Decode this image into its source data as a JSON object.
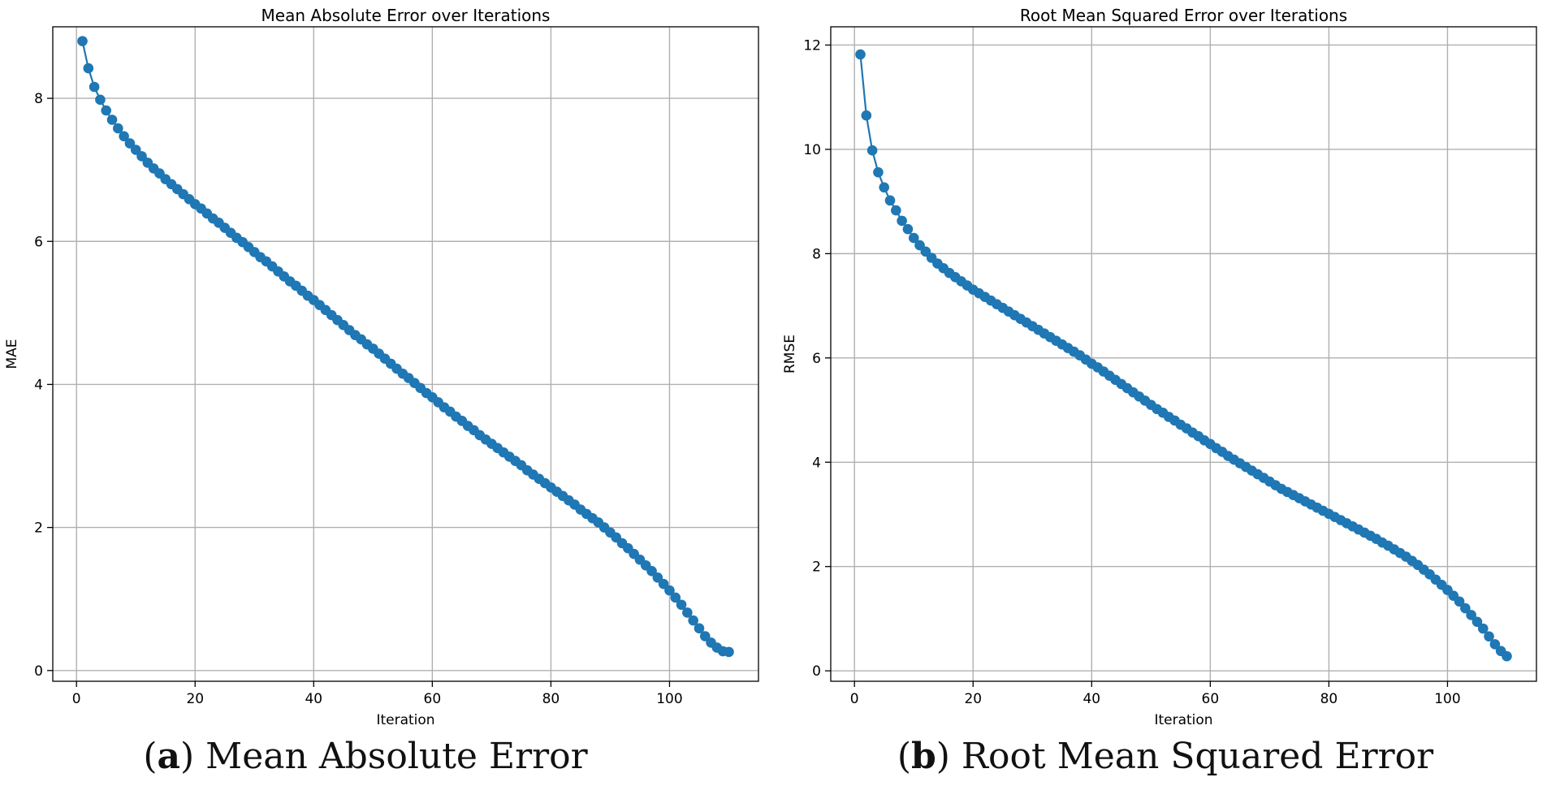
{
  "chart_data": [
    {
      "type": "line",
      "title": "Mean Absolute Error over Iterations",
      "xlabel": "Iteration",
      "ylabel": "MAE",
      "xlim": [
        -4,
        115
      ],
      "ylim": [
        -0.15,
        9.0
      ],
      "xticks": [
        0,
        20,
        40,
        60,
        80,
        100
      ],
      "yticks": [
        0,
        2,
        4,
        6,
        8
      ],
      "grid": true,
      "color": "#1f77b4",
      "marker": "circle",
      "x": [
        1,
        2,
        3,
        4,
        5,
        6,
        7,
        8,
        9,
        10,
        11,
        12,
        13,
        14,
        15,
        16,
        17,
        18,
        19,
        20,
        21,
        22,
        23,
        24,
        25,
        26,
        27,
        28,
        29,
        30,
        31,
        32,
        33,
        34,
        35,
        36,
        37,
        38,
        39,
        40,
        41,
        42,
        43,
        44,
        45,
        46,
        47,
        48,
        49,
        50,
        51,
        52,
        53,
        54,
        55,
        56,
        57,
        58,
        59,
        60,
        61,
        62,
        63,
        64,
        65,
        66,
        67,
        68,
        69,
        70,
        71,
        72,
        73,
        74,
        75,
        76,
        77,
        78,
        79,
        80,
        81,
        82,
        83,
        84,
        85,
        86,
        87,
        88,
        89,
        90,
        91,
        92,
        93,
        94,
        95,
        96,
        97,
        98,
        99,
        100,
        101,
        102,
        103,
        104,
        105,
        106,
        107,
        108,
        109,
        110
      ],
      "y": [
        8.8,
        8.42,
        8.16,
        7.98,
        7.83,
        7.7,
        7.58,
        7.47,
        7.37,
        7.28,
        7.19,
        7.1,
        7.02,
        6.95,
        6.87,
        6.8,
        6.73,
        6.66,
        6.59,
        6.52,
        6.46,
        6.39,
        6.32,
        6.26,
        6.19,
        6.12,
        6.05,
        5.99,
        5.92,
        5.85,
        5.78,
        5.72,
        5.65,
        5.58,
        5.51,
        5.44,
        5.38,
        5.31,
        5.24,
        5.18,
        5.11,
        5.04,
        4.97,
        4.9,
        4.83,
        4.76,
        4.69,
        4.63,
        4.56,
        4.5,
        4.43,
        4.36,
        4.29,
        4.22,
        4.15,
        4.09,
        4.02,
        3.95,
        3.88,
        3.82,
        3.75,
        3.68,
        3.62,
        3.55,
        3.49,
        3.42,
        3.36,
        3.29,
        3.23,
        3.17,
        3.11,
        3.05,
        2.99,
        2.93,
        2.87,
        2.8,
        2.74,
        2.68,
        2.62,
        2.56,
        2.5,
        2.44,
        2.38,
        2.32,
        2.25,
        2.19,
        2.13,
        2.07,
        2.0,
        1.93,
        1.86,
        1.78,
        1.71,
        1.63,
        1.55,
        1.47,
        1.39,
        1.3,
        1.21,
        1.12,
        1.02,
        0.92,
        0.81,
        0.7,
        0.59,
        0.48,
        0.39,
        0.32,
        0.27,
        0.26
      ]
    },
    {
      "type": "line",
      "title": "Root Mean Squared Error over Iterations",
      "xlabel": "Iteration",
      "ylabel": "RMSE",
      "xlim": [
        -4,
        115
      ],
      "ylim": [
        -0.2,
        12.35
      ],
      "xticks": [
        0,
        20,
        40,
        60,
        80,
        100
      ],
      "yticks": [
        0,
        2,
        4,
        6,
        8,
        10,
        12
      ],
      "grid": true,
      "color": "#1f77b4",
      "marker": "circle",
      "x": [
        1,
        2,
        3,
        4,
        5,
        6,
        7,
        8,
        9,
        10,
        11,
        12,
        13,
        14,
        15,
        16,
        17,
        18,
        19,
        20,
        21,
        22,
        23,
        24,
        25,
        26,
        27,
        28,
        29,
        30,
        31,
        32,
        33,
        34,
        35,
        36,
        37,
        38,
        39,
        40,
        41,
        42,
        43,
        44,
        45,
        46,
        47,
        48,
        49,
        50,
        51,
        52,
        53,
        54,
        55,
        56,
        57,
        58,
        59,
        60,
        61,
        62,
        63,
        64,
        65,
        66,
        67,
        68,
        69,
        70,
        71,
        72,
        73,
        74,
        75,
        76,
        77,
        78,
        79,
        80,
        81,
        82,
        83,
        84,
        85,
        86,
        87,
        88,
        89,
        90,
        91,
        92,
        93,
        94,
        95,
        96,
        97,
        98,
        99,
        100,
        101,
        102,
        103,
        104,
        105,
        106,
        107,
        108,
        109,
        110
      ],
      "y": [
        11.82,
        10.65,
        9.98,
        9.56,
        9.27,
        9.02,
        8.83,
        8.63,
        8.47,
        8.3,
        8.16,
        8.04,
        7.92,
        7.81,
        7.72,
        7.63,
        7.55,
        7.47,
        7.39,
        7.31,
        7.24,
        7.17,
        7.1,
        7.03,
        6.96,
        6.89,
        6.82,
        6.75,
        6.68,
        6.61,
        6.54,
        6.47,
        6.4,
        6.33,
        6.26,
        6.19,
        6.12,
        6.05,
        5.97,
        5.89,
        5.82,
        5.74,
        5.66,
        5.58,
        5.5,
        5.42,
        5.34,
        5.26,
        5.18,
        5.1,
        5.02,
        4.95,
        4.87,
        4.8,
        4.72,
        4.65,
        4.57,
        4.5,
        4.42,
        4.35,
        4.27,
        4.2,
        4.12,
        4.05,
        3.98,
        3.91,
        3.84,
        3.77,
        3.7,
        3.63,
        3.56,
        3.49,
        3.43,
        3.37,
        3.31,
        3.25,
        3.19,
        3.13,
        3.07,
        3.01,
        2.95,
        2.89,
        2.83,
        2.77,
        2.71,
        2.65,
        2.59,
        2.53,
        2.46,
        2.4,
        2.33,
        2.26,
        2.19,
        2.11,
        2.03,
        1.94,
        1.85,
        1.75,
        1.65,
        1.55,
        1.44,
        1.33,
        1.2,
        1.07,
        0.94,
        0.81,
        0.66,
        0.51,
        0.38,
        0.28
      ]
    }
  ],
  "captions": {
    "a_tag": "a",
    "a_text": " Mean Absolute Error",
    "b_tag": "b",
    "b_text": " Root Mean Squared Error"
  }
}
